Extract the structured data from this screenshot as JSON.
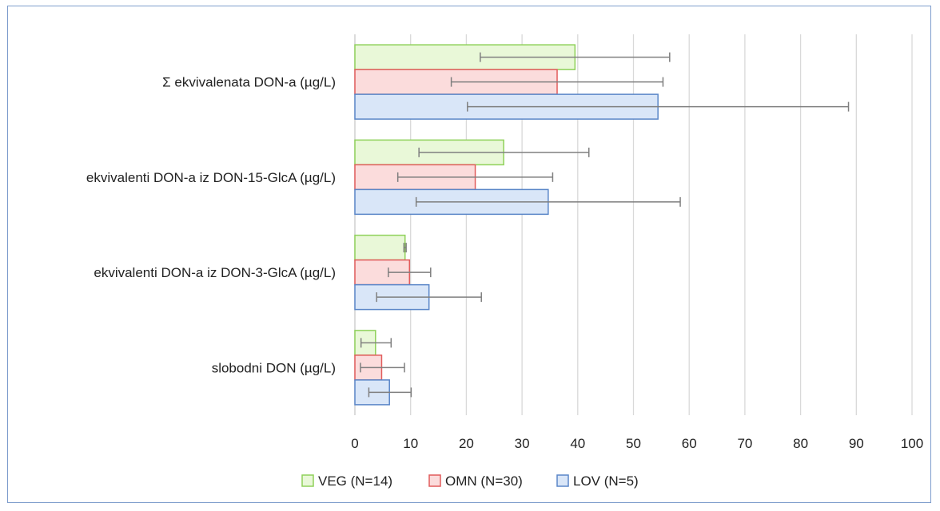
{
  "chart_data": {
    "type": "bar",
    "orientation": "horizontal",
    "categories": [
      "Σ ekvivalenata DON-a (µg/L)",
      "ekvivalenti DON-a iz DON-15-GlcA (µg/L)",
      "ekvivalenti DON-a iz DON-3-GlcA (µg/L)",
      "slobodni DON (µg/L)"
    ],
    "series": [
      {
        "name": "VEG (N=14)",
        "values": [
          39.5,
          26.7,
          9.0,
          3.7
        ],
        "err_low": [
          22.5,
          11.5,
          8.8,
          1.1
        ],
        "err_high": [
          56.5,
          42.0,
          9.2,
          6.5
        ],
        "color": "#e9f8d8",
        "stroke": "#8fd15a"
      },
      {
        "name": "OMN (N=30)",
        "values": [
          36.3,
          21.6,
          9.8,
          4.8
        ],
        "err_low": [
          17.3,
          7.7,
          6.0,
          1.0
        ],
        "err_high": [
          55.3,
          35.5,
          13.6,
          8.9
        ],
        "color": "#fbdcdc",
        "stroke": "#e15b5b"
      },
      {
        "name": "LOV (N=5)",
        "values": [
          54.4,
          34.7,
          13.3,
          6.2
        ],
        "err_low": [
          20.2,
          11.0,
          3.9,
          2.5
        ],
        "err_high": [
          88.6,
          58.4,
          22.7,
          10.1
        ],
        "color": "#d9e6f8",
        "stroke": "#5a86c8"
      }
    ],
    "xlim": [
      0,
      100
    ],
    "xticks": [
      "0",
      "10",
      "20",
      "30",
      "40",
      "50",
      "60",
      "70",
      "80",
      "90",
      "100"
    ],
    "grid": true,
    "legend_position": "bottom"
  }
}
